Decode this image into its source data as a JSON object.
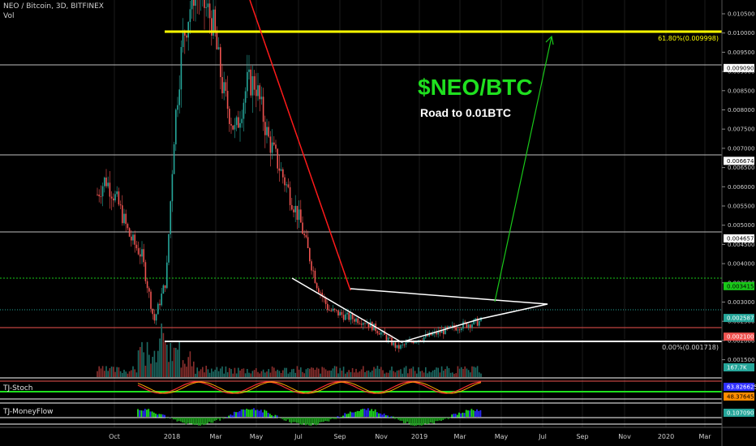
{
  "header": {
    "symbol_line": "NEO / Bitcoin, 3D, BITFINEX",
    "vol_label": "Vol"
  },
  "indicators": {
    "stoch_label": "TJ-Stoch",
    "moneyflow_label": "TJ-MoneyFlow"
  },
  "annotations": {
    "title": "$NEO/BTC",
    "subtitle": "Road to 0.01BTC",
    "fib_top": "61.80%(0.009998)",
    "fib_bottom": "0.00%(0.001718)"
  },
  "colors": {
    "up": "#26a69a",
    "down": "#ef5350",
    "title": "#1fe01f",
    "fib": "#ffff00",
    "arrow": "#19c819",
    "downtrend": "#ff1a1a",
    "support": "#ffffff"
  },
  "chart_data": {
    "type": "candlestick",
    "x_ticks": [
      "Oct",
      "2018",
      "Mar",
      "May",
      "Jul",
      "Sep",
      "Nov",
      "2019",
      "Mar",
      "May",
      "Jul",
      "Sep",
      "Nov",
      "2020",
      "Mar"
    ],
    "y_ticks": [
      "0.010500",
      "0.010000",
      "0.009500",
      "0.009000",
      "0.008500",
      "0.008000",
      "0.007500",
      "0.007000",
      "0.006500",
      "0.006000",
      "0.005500",
      "0.005000",
      "0.004500",
      "0.004000",
      "0.003500",
      "0.003000",
      "0.002500",
      "0.002000",
      "0.001500"
    ],
    "ylim": [
      0.00125,
      0.01075
    ],
    "price_labels": [
      {
        "text": "0.009090",
        "value": 0.00909,
        "bg": "#ffffff",
        "fg": "#000000"
      },
      {
        "text": "0.006674",
        "value": 0.006674,
        "bg": "#ffffff",
        "fg": "#000000"
      },
      {
        "text": "0.004657",
        "value": 0.004657,
        "bg": "#ffffff",
        "fg": "#000000"
      },
      {
        "text": "0.003415",
        "value": 0.003415,
        "bg": "#19c819",
        "fg": "#000000"
      },
      {
        "text": "0.002587",
        "value": 0.002587,
        "bg": "#26a69a",
        "fg": "#ffffff"
      },
      {
        "text": "0.002100",
        "value": 0.0021,
        "bg": "#ef5350",
        "fg": "#ffffff"
      }
    ],
    "volume_label": "167.7K",
    "stoch_labels": [
      "63.826625",
      "48.376452"
    ],
    "moneyflow_label": "0.107090"
  }
}
